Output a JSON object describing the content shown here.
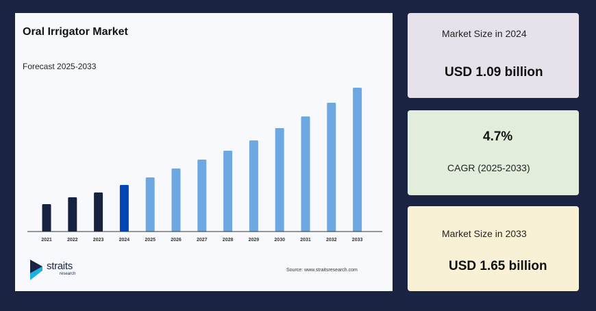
{
  "title": "Oral Irrigator Market",
  "subtitle": "Forecast 2025-2033",
  "source": "Source: www.straitsresearch.com",
  "logo": {
    "text": "straits",
    "sub": "research"
  },
  "colors": {
    "background": "#1a2342",
    "historic": "#172140",
    "current": "#0047b3",
    "forecast": "#6ea8e3"
  },
  "chart_data": {
    "type": "bar",
    "categories": [
      "2021",
      "2022",
      "2023",
      "2024",
      "2025",
      "2026",
      "2027",
      "2028",
      "2029",
      "2030",
      "2031",
      "2032",
      "2033"
    ],
    "values": [
      40,
      50,
      57,
      68,
      79,
      92,
      105,
      118,
      133,
      151,
      168,
      188,
      210
    ],
    "bar_roles": [
      "historic",
      "historic",
      "historic",
      "current",
      "forecast",
      "forecast",
      "forecast",
      "forecast",
      "forecast",
      "forecast",
      "forecast",
      "forecast",
      "forecast"
    ],
    "title": "Oral Irrigator Market",
    "xlabel": "",
    "ylabel": "",
    "ylim": [
      0,
      210
    ],
    "grid": false
  },
  "cards": [
    {
      "label": "Market Size in 2024",
      "value": "USD 1.09 billion",
      "color": "#e6e1ea"
    },
    {
      "label": "CAGR (2025-2033)",
      "value": "4.7%",
      "color": "#e2eddc"
    },
    {
      "label": "Market Size in 2033",
      "value": "USD 1.65 billion",
      "color": "#f8f1d6"
    }
  ]
}
